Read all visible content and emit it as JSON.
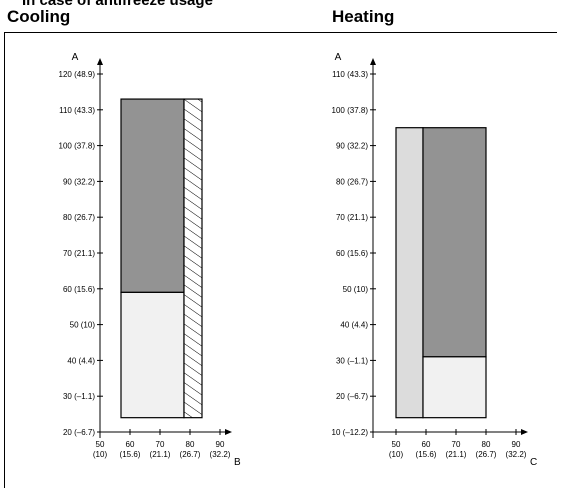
{
  "header": {
    "top_title": "In case of antifreeze usage",
    "cooling_heading": "Cooling",
    "heating_heading": "Heating"
  },
  "colors": {
    "dark_region": "#939393",
    "light_region": "#f1f1f1",
    "light_gray_band": "#dcdcdc",
    "axis": "#000000"
  },
  "cooling": {
    "y_axis_name": "A",
    "x_axis_name": "B",
    "y_ticks": [
      {
        "value": 20,
        "label": "20 (–6.7)"
      },
      {
        "value": 30,
        "label": "30 (–1.1)"
      },
      {
        "value": 40,
        "label": "40 (4.4)"
      },
      {
        "value": 50,
        "label": "50 (10)"
      },
      {
        "value": 60,
        "label": "60 (15.6)"
      },
      {
        "value": 70,
        "label": "70 (21.1)"
      },
      {
        "value": 80,
        "label": "80 (26.7)"
      },
      {
        "value": 90,
        "label": "90 (32.2)"
      },
      {
        "value": 100,
        "label": "100 (37.8)"
      },
      {
        "value": 110,
        "label": "110 (43.3)"
      },
      {
        "value": 120,
        "label": "120 (48.9)"
      }
    ],
    "x_ticks": [
      {
        "value": 50,
        "label": "50",
        "sub": "(10)"
      },
      {
        "value": 60,
        "label": "60",
        "sub": "(15.6)"
      },
      {
        "value": 70,
        "label": "70",
        "sub": "(21.1)"
      },
      {
        "value": 80,
        "label": "80",
        "sub": "(26.7)"
      },
      {
        "value": 90,
        "label": "90",
        "sub": "(32.2)"
      }
    ],
    "x_range": [
      50,
      93
    ],
    "y_range": [
      20,
      123
    ],
    "regions": [
      {
        "name": "cooling-region-dark",
        "fill": "dark",
        "x": [
          57,
          78
        ],
        "y": [
          59,
          113
        ]
      },
      {
        "name": "cooling-region-light",
        "fill": "light",
        "x": [
          57,
          78
        ],
        "y": [
          24,
          59
        ]
      },
      {
        "name": "cooling-region-hatched",
        "fill": "hatch",
        "x": [
          78,
          84
        ],
        "y": [
          24,
          113
        ]
      }
    ]
  },
  "heating": {
    "y_axis_name": "A",
    "x_axis_name": "C",
    "y_ticks": [
      {
        "value": 10,
        "label": "10 (–12.2)"
      },
      {
        "value": 20,
        "label": "20 (–6.7)"
      },
      {
        "value": 30,
        "label": "30 (–1.1)"
      },
      {
        "value": 40,
        "label": "40 (4.4)"
      },
      {
        "value": 50,
        "label": "50 (10)"
      },
      {
        "value": 60,
        "label": "60 (15.6)"
      },
      {
        "value": 70,
        "label": "70 (21.1)"
      },
      {
        "value": 80,
        "label": "80 (26.7)"
      },
      {
        "value": 90,
        "label": "90 (32.2)"
      },
      {
        "value": 100,
        "label": "100 (37.8)"
      },
      {
        "value": 110,
        "label": "110 (43.3)"
      }
    ],
    "x_ticks": [
      {
        "value": 50,
        "label": "50",
        "sub": "(10)"
      },
      {
        "value": 60,
        "label": "60",
        "sub": "(15.6)"
      },
      {
        "value": 70,
        "label": "70",
        "sub": "(21.1)"
      },
      {
        "value": 80,
        "label": "80",
        "sub": "(26.7)"
      },
      {
        "value": 90,
        "label": "90",
        "sub": "(32.2)"
      }
    ],
    "x_range": [
      40,
      93
    ],
    "y_range": [
      10,
      113
    ],
    "regions": [
      {
        "name": "heating-region-light-gray",
        "fill": "light_gray",
        "x": [
          50,
          59
        ],
        "y": [
          14,
          95
        ]
      },
      {
        "name": "heating-region-dark",
        "fill": "dark",
        "x": [
          59,
          80
        ],
        "y": [
          31,
          95
        ]
      },
      {
        "name": "heating-region-light",
        "fill": "light",
        "x": [
          59,
          80
        ],
        "y": [
          14,
          31
        ]
      }
    ]
  }
}
